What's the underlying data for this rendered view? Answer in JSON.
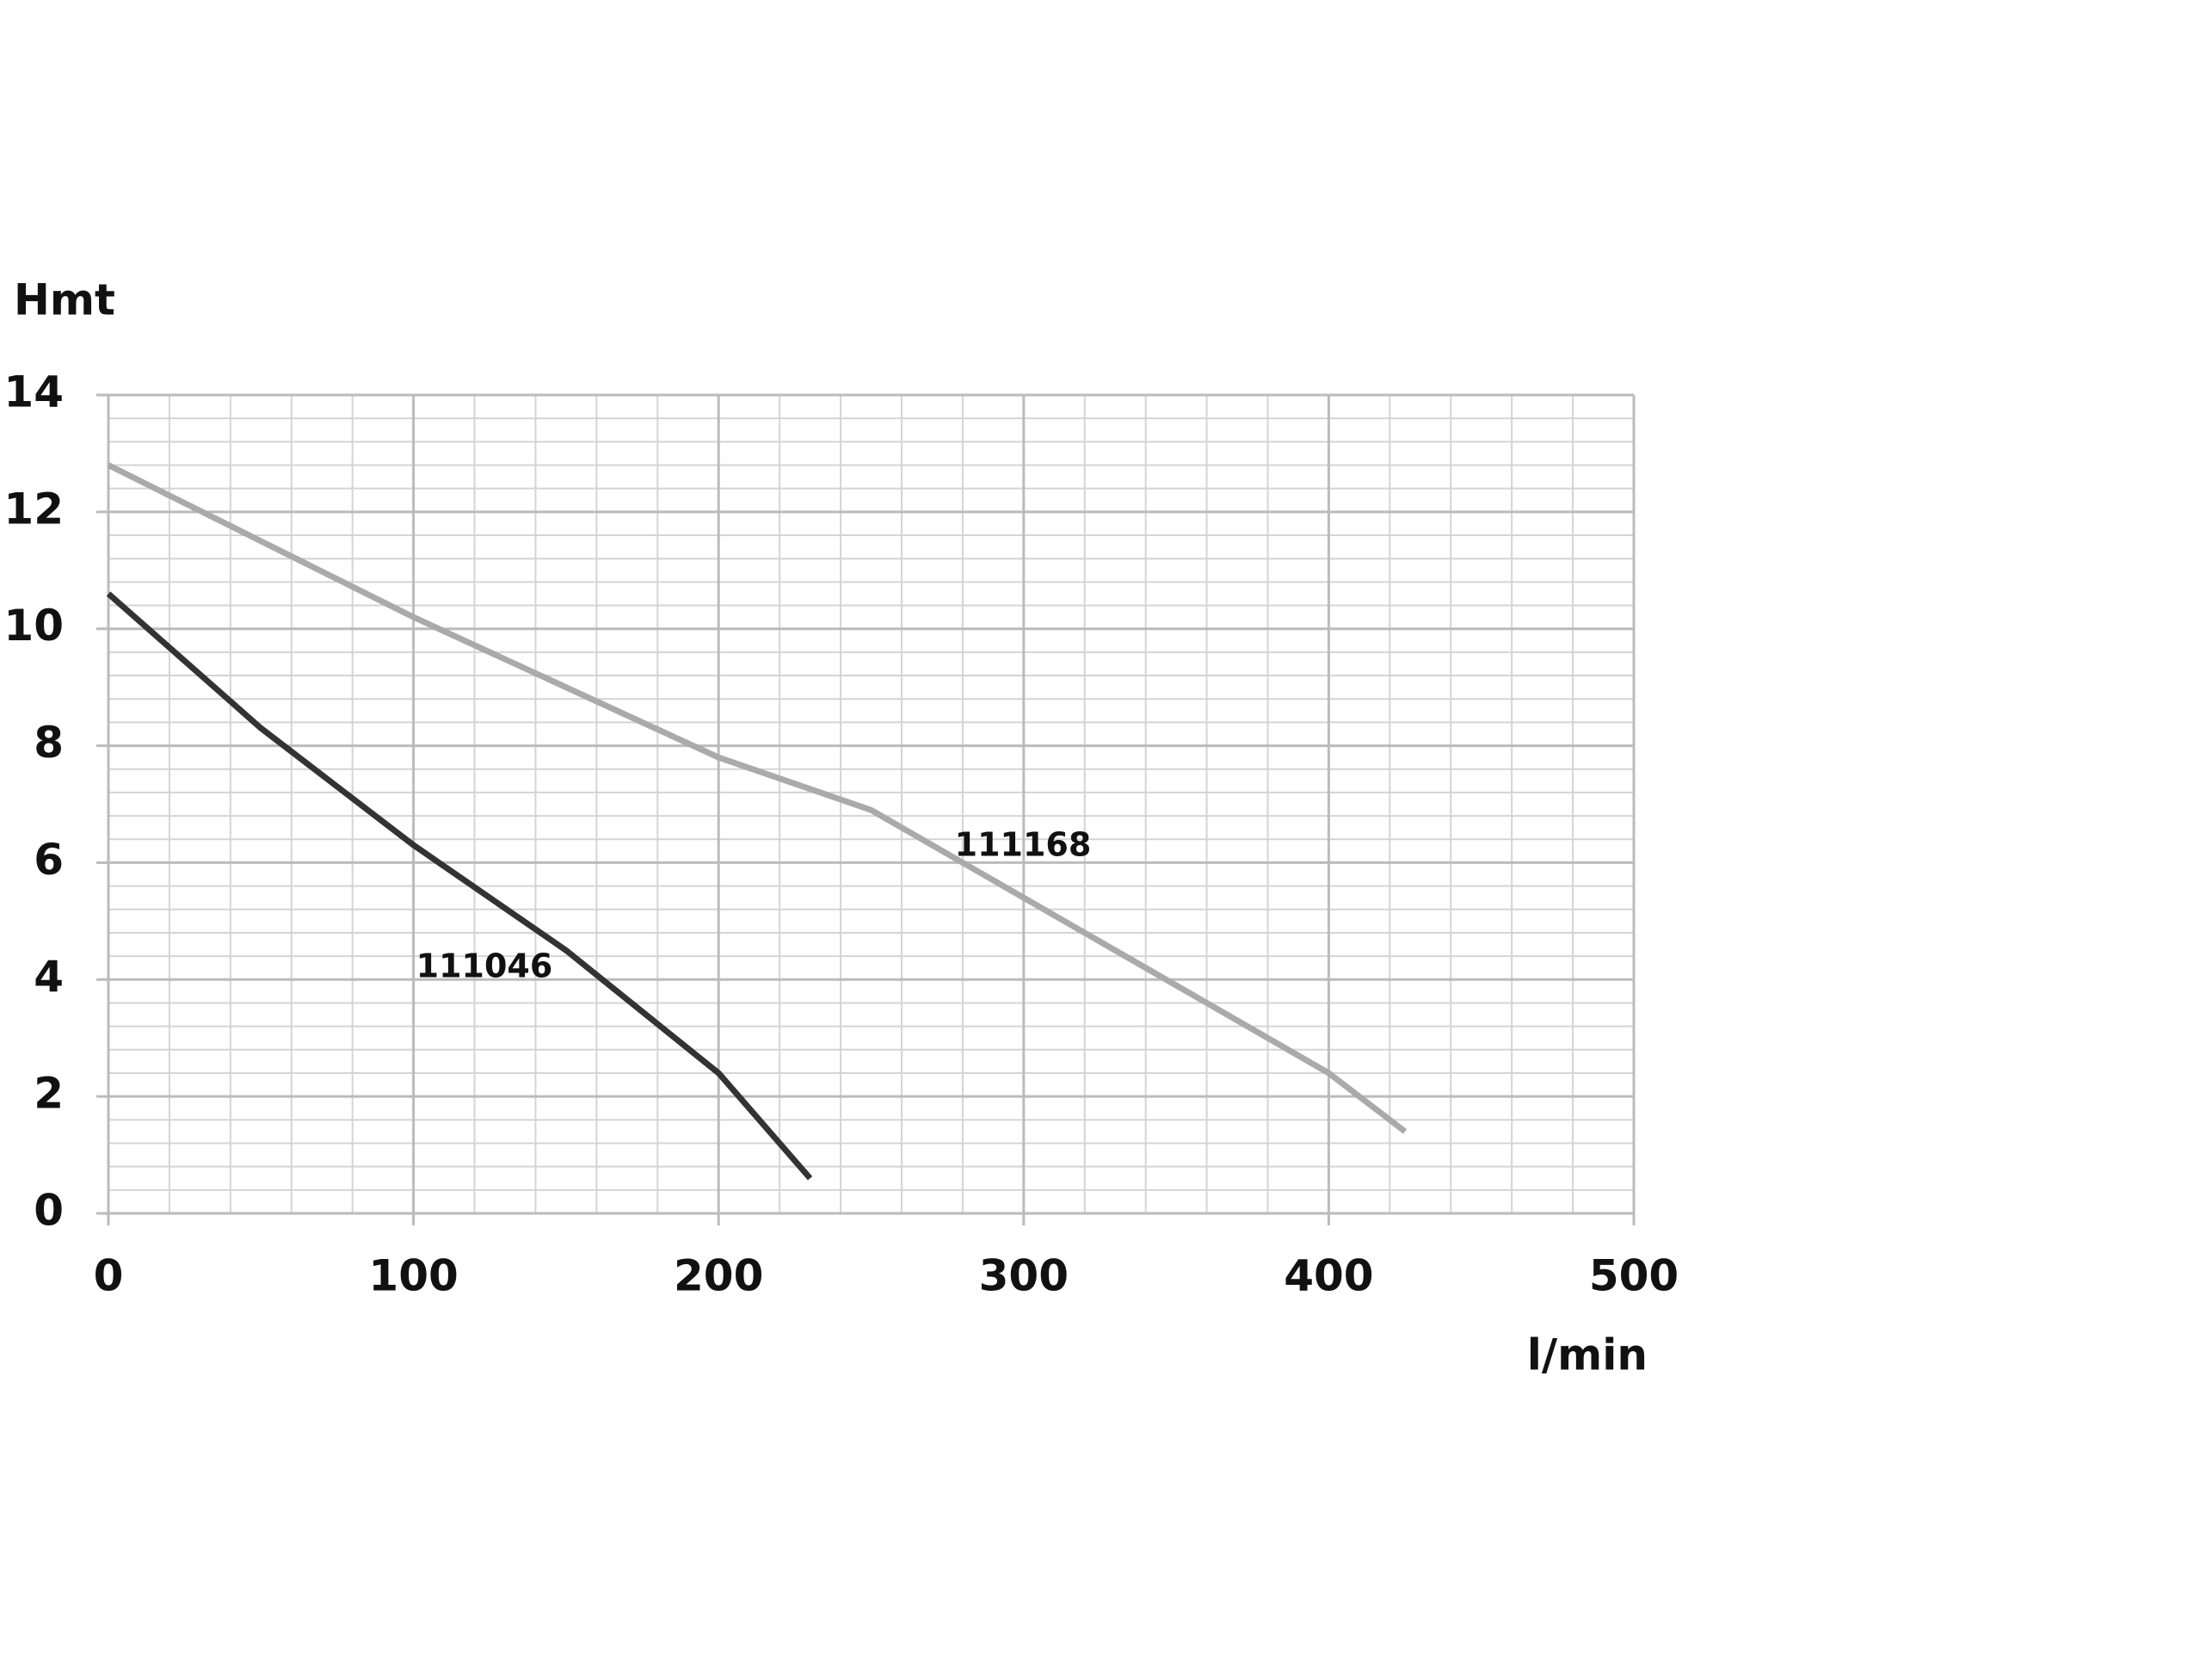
{
  "chart_data": {
    "type": "line",
    "x_label": "l/min",
    "y_label": "Hmt",
    "xlim": [
      0,
      500
    ],
    "ylim": [
      0,
      14
    ],
    "xticks": [
      0,
      100,
      200,
      300,
      400,
      500
    ],
    "yticks": [
      0,
      2,
      4,
      6,
      8,
      10,
      12,
      14
    ],
    "xminorticks": [
      20,
      40,
      60,
      80,
      120,
      140,
      160,
      180,
      220,
      240,
      260,
      280,
      320,
      340,
      360,
      380,
      420,
      440,
      460,
      480
    ],
    "yminorticks": [
      0.4,
      0.8,
      1.2,
      1.6,
      2.4,
      2.8,
      3.2,
      3.6,
      4.4,
      4.8,
      5.2,
      5.6,
      6.4,
      6.8,
      7.2,
      7.6,
      8.4,
      8.8,
      9.2,
      9.6,
      10.4,
      10.8,
      11.2,
      11.6,
      12.4,
      12.8,
      13.2,
      13.6
    ],
    "grid": true,
    "series": [
      {
        "name": "111046",
        "color": "#333333",
        "x": [
          0,
          50,
          100,
          150,
          200,
          230
        ],
        "values": [
          10.6,
          8.3,
          6.3,
          4.5,
          2.4,
          0.6
        ]
      },
      {
        "name": "111168",
        "color": "#aaaaaa",
        "x": [
          0,
          100,
          200,
          250,
          300,
          350,
          400,
          425
        ],
        "values": [
          12.8,
          10.2,
          7.8,
          6.9,
          5.4,
          3.9,
          2.4,
          1.4
        ]
      }
    ]
  }
}
